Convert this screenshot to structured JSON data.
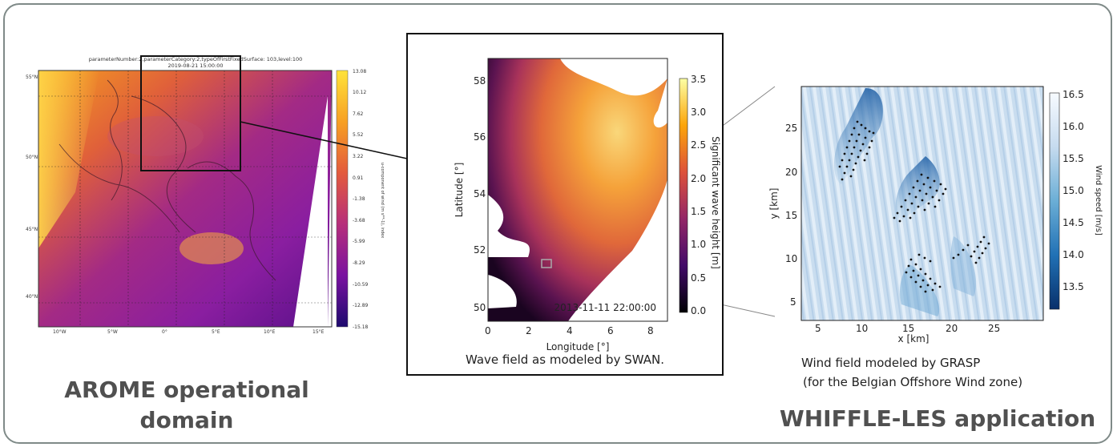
{
  "captions": {
    "arome_line1": "AROME operational",
    "arome_line2": "domain",
    "swan": "Wave field as modeled by SWAN.",
    "grasp_line1": "Wind field modeled by GRASP",
    "grasp_line2": "(for the Belgian Offshore Wind zone)",
    "whiffle": "WHIFFLE-LES application"
  },
  "arome": {
    "title_line1": "parameterNumber:2,parameterCategory:2,typeOfFirstFixedSurface: 103,level:100",
    "title_line2": "2019-08-21 15:00:00",
    "lat_ticks": [
      "55°N",
      "50°N",
      "45°N",
      "40°N"
    ],
    "lon_ticks": [
      "10°W",
      "5°W",
      "0°",
      "5°E",
      "10°E",
      "15°E"
    ],
    "colorbar_ticks": [
      "13.08",
      "10.12",
      "7.62",
      "5.52",
      "3.22",
      "0.91",
      "-1.38",
      "-3.68",
      "-5.99",
      "-8.29",
      "-10.59",
      "-12.89",
      "-15.18"
    ],
    "colorbar_label": "u-component of wind (m s**-1), index",
    "colors": [
      "#ffe33a",
      "#f7a023",
      "#e35a3d",
      "#b62f7b",
      "#7a12a0",
      "#2a0a7a"
    ]
  },
  "swan": {
    "x_ticks": [
      "0",
      "2",
      "4",
      "6",
      "8"
    ],
    "y_ticks": [
      "58",
      "56",
      "54",
      "52",
      "50"
    ],
    "xlabel": "Longitude [°]",
    "ylabel": "Latitude [°]",
    "timestamp": "2013-11-11 22:00:00",
    "colorbar_ticks": [
      "3.5",
      "3.0",
      "2.5",
      "2.0",
      "1.5",
      "1.0",
      "0.5",
      "0.0"
    ],
    "colorbar_label": "Significant wave height [m]"
  },
  "grasp": {
    "x_ticks": [
      "5",
      "10",
      "15",
      "20",
      "25"
    ],
    "y_ticks": [
      "25",
      "20",
      "15",
      "10",
      "5"
    ],
    "xlabel": "x [km]",
    "ylabel": "y [km]",
    "colorbar_ticks": [
      "16.5",
      "16.0",
      "15.5",
      "15.0",
      "14.5",
      "14.0",
      "13.5"
    ],
    "colorbar_label": "Wind speed [m/s]"
  }
}
